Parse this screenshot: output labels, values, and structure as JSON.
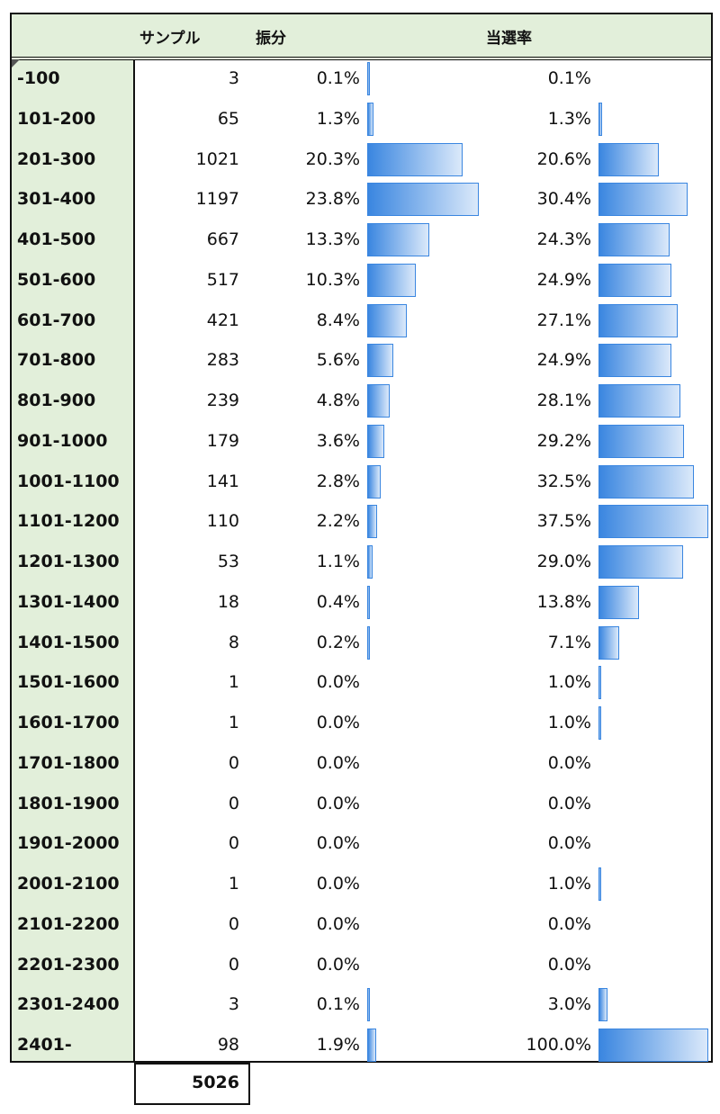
{
  "headers": {
    "sample": "サンプル",
    "distribution": "振分",
    "win_rate": "当選率"
  },
  "rows": [
    {
      "range": "-100",
      "sample": "3",
      "dist": "0.1%",
      "rate": "0.1%"
    },
    {
      "range": "101-200",
      "sample": "65",
      "dist": "1.3%",
      "rate": "1.3%"
    },
    {
      "range": "201-300",
      "sample": "1021",
      "dist": "20.3%",
      "rate": "20.6%"
    },
    {
      "range": "301-400",
      "sample": "1197",
      "dist": "23.8%",
      "rate": "30.4%"
    },
    {
      "range": "401-500",
      "sample": "667",
      "dist": "13.3%",
      "rate": "24.3%"
    },
    {
      "range": "501-600",
      "sample": "517",
      "dist": "10.3%",
      "rate": "24.9%"
    },
    {
      "range": "601-700",
      "sample": "421",
      "dist": "8.4%",
      "rate": "27.1%"
    },
    {
      "range": "701-800",
      "sample": "283",
      "dist": "5.6%",
      "rate": "24.9%"
    },
    {
      "range": "801-900",
      "sample": "239",
      "dist": "4.8%",
      "rate": "28.1%"
    },
    {
      "range": "901-1000",
      "sample": "179",
      "dist": "3.6%",
      "rate": "29.2%"
    },
    {
      "range": "1001-1100",
      "sample": "141",
      "dist": "2.8%",
      "rate": "32.5%"
    },
    {
      "range": "1101-1200",
      "sample": "110",
      "dist": "2.2%",
      "rate": "37.5%"
    },
    {
      "range": "1201-1300",
      "sample": "53",
      "dist": "1.1%",
      "rate": "29.0%"
    },
    {
      "range": "1301-1400",
      "sample": "18",
      "dist": "0.4%",
      "rate": "13.8%"
    },
    {
      "range": "1401-1500",
      "sample": "8",
      "dist": "0.2%",
      "rate": "7.1%"
    },
    {
      "range": "1501-1600",
      "sample": "1",
      "dist": "0.0%",
      "rate": "1.0%"
    },
    {
      "range": "1601-1700",
      "sample": "1",
      "dist": "0.0%",
      "rate": "1.0%"
    },
    {
      "range": "1701-1800",
      "sample": "0",
      "dist": "0.0%",
      "rate": "0.0%"
    },
    {
      "range": "1801-1900",
      "sample": "0",
      "dist": "0.0%",
      "rate": "0.0%"
    },
    {
      "range": "1901-2000",
      "sample": "0",
      "dist": "0.0%",
      "rate": "0.0%"
    },
    {
      "range": "2001-2100",
      "sample": "1",
      "dist": "0.0%",
      "rate": "1.0%"
    },
    {
      "range": "2101-2200",
      "sample": "0",
      "dist": "0.0%",
      "rate": "0.0%"
    },
    {
      "range": "2201-2300",
      "sample": "0",
      "dist": "0.0%",
      "rate": "0.0%"
    },
    {
      "range": "2301-2400",
      "sample": "3",
      "dist": "0.1%",
      "rate": "3.0%"
    },
    {
      "range": "2401-",
      "sample": "98",
      "dist": "1.9%",
      "rate": "100.0%"
    }
  ],
  "total": "5026",
  "colors": {
    "bar": "#3a86e0",
    "label_bg": "#e2efda"
  }
}
